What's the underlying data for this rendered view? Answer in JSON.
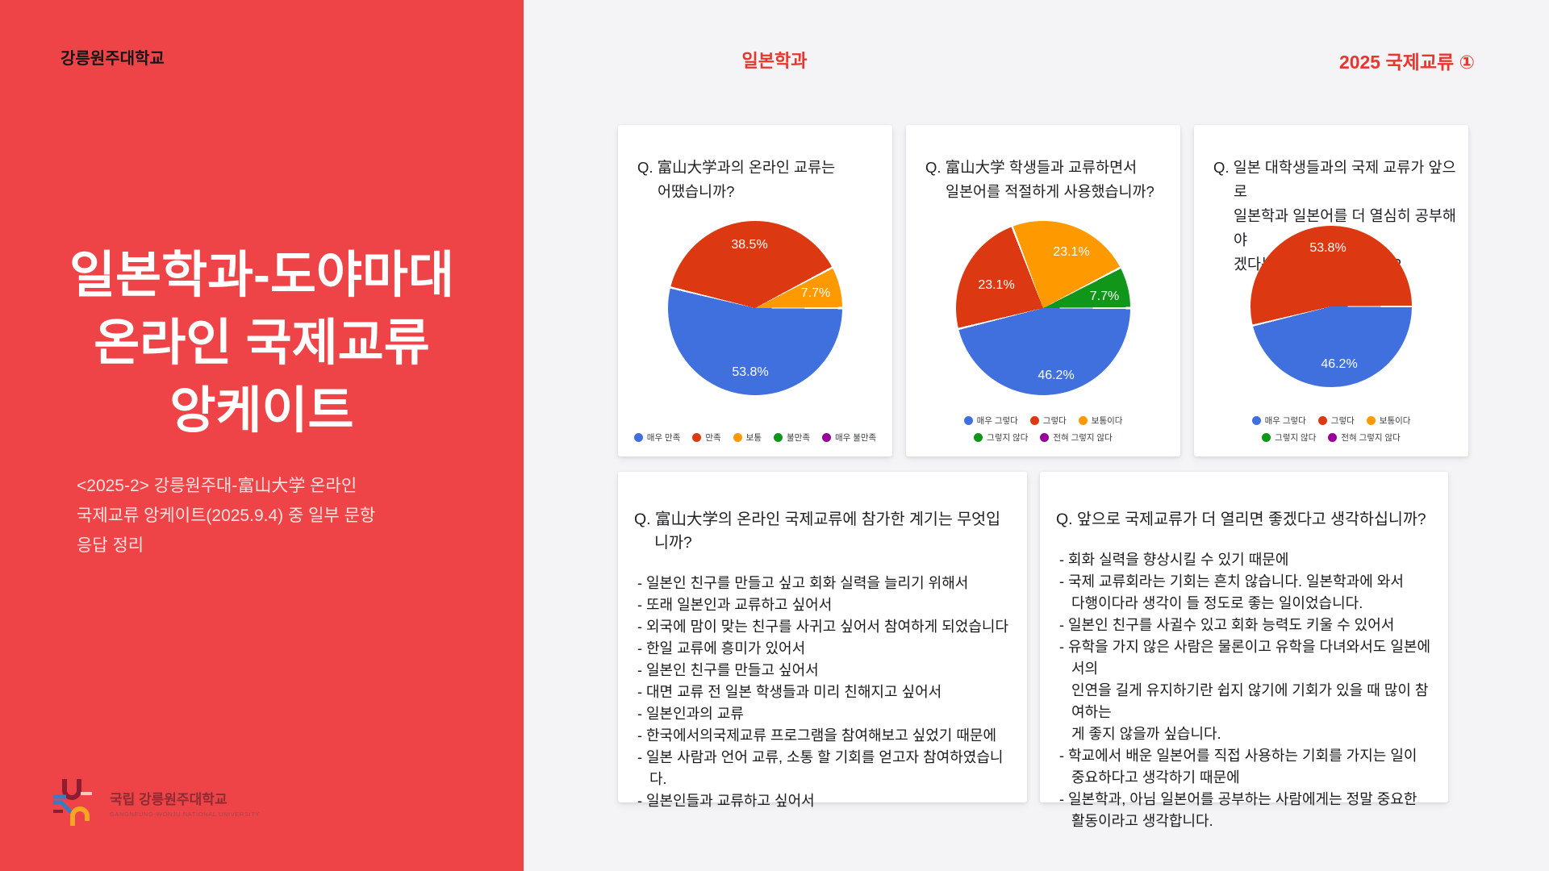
{
  "accent": "#E6362D",
  "sidebar": {
    "bg": "#EE4347",
    "university": "강릉원주대학교",
    "title": "일본학과-도야마대\n온라인 국제교류\n앙케이트",
    "subtitle": "<2025-2> 강릉원주대-富山大学 온라인\n국제교류 앙케이트(2025.9.4) 중 일부 문항\n응답 정리",
    "logo_name": "국립 강릉원주대학교",
    "logo_sub": "GANGNEUNG-WONJU NATIONAL UNIVERSITY"
  },
  "header": {
    "center": "일본학과",
    "right": "2025 국제교류 ①"
  },
  "palette": {
    "blue": "#3F70DE",
    "red": "#DC3912",
    "orange": "#FF9900",
    "green": "#109618",
    "purple": "#990099"
  },
  "chart_data": [
    {
      "type": "pie",
      "question": "Q. 富山大学과의 온라인 교류는\n어땠습니까?",
      "slices": [
        {
          "label": "매우 만족",
          "value": 53.8,
          "pct": "53.8%",
          "color": "blue"
        },
        {
          "label": "만족",
          "value": 38.5,
          "pct": "38.5%",
          "color": "red"
        },
        {
          "label": "보통",
          "value": 7.7,
          "pct": "7.7%",
          "color": "orange"
        }
      ],
      "legend": [
        {
          "label": "매우 만족",
          "color": "blue"
        },
        {
          "label": "만족",
          "color": "red"
        },
        {
          "label": "보통",
          "color": "orange"
        },
        {
          "label": "불만족",
          "color": "green"
        },
        {
          "label": "매우 불만족",
          "color": "purple"
        }
      ]
    },
    {
      "type": "pie",
      "question": "Q. 富山大学 학생들과 교류하면서\n일본어를 적절하게 사용했습니까?",
      "slices": [
        {
          "label": "매우 그렇다",
          "value": 46.2,
          "pct": "46.2%",
          "color": "blue"
        },
        {
          "label": "그렇다",
          "value": 23.1,
          "pct": "23.1%",
          "color": "red"
        },
        {
          "label": "보통이다",
          "value": 23.1,
          "pct": "23.1%",
          "color": "orange"
        },
        {
          "label": "그렇지 않다",
          "value": 7.7,
          "pct": "7.7%",
          "color": "green"
        }
      ],
      "legend": [
        {
          "label": "매우 그렇다",
          "color": "blue"
        },
        {
          "label": "그렇다",
          "color": "red"
        },
        {
          "label": "보통이다",
          "color": "orange"
        },
        {
          "label": "그렇지 않다",
          "color": "green"
        },
        {
          "label": "전혀 그렇지 않다",
          "color": "purple"
        }
      ]
    },
    {
      "type": "pie",
      "question": "Q. 일본 대학생들과의 국제 교류가 앞으로\n일본학과 일본어를 더 열심히 공부해야\n겠다는 계기가 되었습니까?",
      "slices": [
        {
          "label": "매우 그렇다",
          "value": 46.2,
          "pct": "46.2%",
          "color": "blue"
        },
        {
          "label": "그렇다",
          "value": 53.8,
          "pct": "53.8%",
          "color": "red"
        }
      ],
      "legend": [
        {
          "label": "매우 그렇다",
          "color": "blue"
        },
        {
          "label": "그렇다",
          "color": "red"
        },
        {
          "label": "보통이다",
          "color": "orange"
        },
        {
          "label": "그렇지 않다",
          "color": "green"
        },
        {
          "label": "전혀 그렇지 않다",
          "color": "purple"
        }
      ]
    }
  ],
  "qa_cards": [
    {
      "question": "Q. 富山大学의 온라인 국제교류에 참가한 계기는 무엇입니까?",
      "items": [
        "일본인 친구를 만들고 싶고 회화 실력을 늘리기 위해서",
        "또래 일본인과 교류하고 싶어서",
        "외국에 맘이 맞는 친구를 사귀고 싶어서 참여하게 되었습니다",
        "한일 교류에 흥미가 있어서",
        "일본인 친구를 만들고 싶어서",
        "대면 교류 전 일본 학생들과 미리 친해지고 싶어서",
        "일본인과의 교류",
        "한국에서의국제교류 프로그램을 참여해보고 싶었기 때문에",
        "일본 사람과 언어 교류, 소통 할 기회를 얻고자 참여하였습니다.",
        "일본인들과 교류하고 싶어서"
      ]
    },
    {
      "question": "Q. 앞으로 국제교류가 더 열리면 좋겠다고 생각하십니까?",
      "items": [
        "회화 실력을 향상시킬 수 있기 때문에",
        "국제 교류회라는 기회는 흔치 않습니다. 일본학과에 와서\n다행이다라 생각이 들 정도로 좋는 일이었습니다.",
        "일본인 친구를 사귈수 있고 회화 능력도 키울 수 있어서",
        "유학을 가지 않은 사람은 물론이고 유학을 다녀와서도 일본에서의\n인연을 길게 유지하기란 쉽지 않기에 기회가 있을 때 많이 참여하는\n게 좋지 않을까 싶습니다.",
        "학교에서 배운 일본어를 직접 사용하는 기회를 가지는 일이\n중요하다고 생각하기 때문에",
        "일본학과, 아님 일본어를 공부하는 사람에게는 정말 중요한\n활동이라고 생각합니다."
      ]
    }
  ]
}
